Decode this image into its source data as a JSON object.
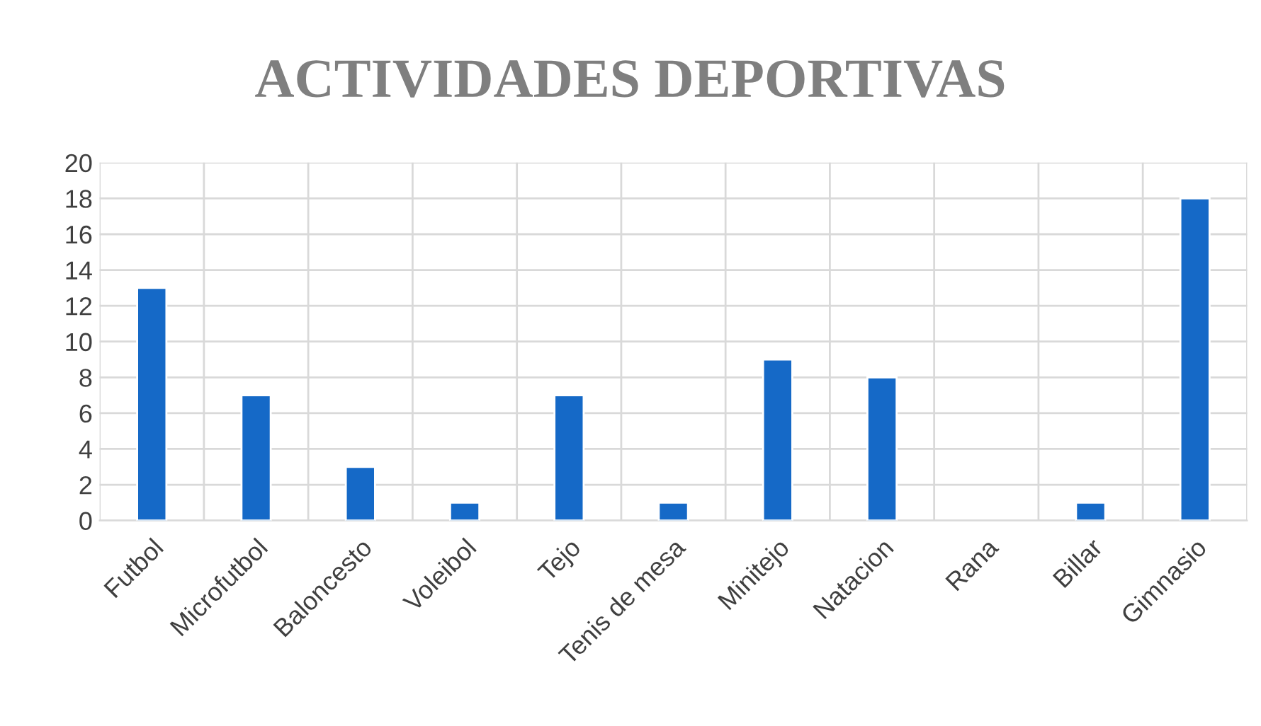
{
  "chart_data": {
    "type": "bar",
    "title": "ACTIVIDADES DEPORTIVAS",
    "categories": [
      "Futbol",
      "Microfutbol",
      "Baloncesto",
      "Voleibol",
      "Tejo",
      "Tenis de mesa",
      "Minitejo",
      "Natacion",
      "Rana",
      "Billar",
      "Gimnasio"
    ],
    "values": [
      13,
      7,
      3,
      1,
      7,
      1,
      9,
      8,
      null,
      1,
      18
    ],
    "color": "#1569c7",
    "ylim": [
      0,
      20
    ],
    "yticks": [
      0,
      2,
      4,
      6,
      8,
      10,
      12,
      14,
      16,
      18,
      20
    ],
    "grid": true
  }
}
